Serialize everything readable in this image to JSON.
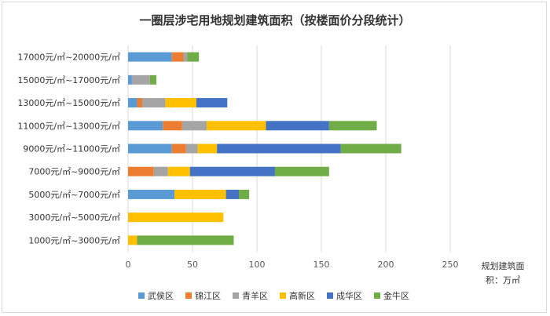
{
  "chart_data": {
    "type": "bar",
    "orientation": "horizontal",
    "stacked": true,
    "title": "一圈层涉宅用地规划建筑面积（按楼面价分段统计）",
    "xlabel_line1": "规划建筑面",
    "xlabel_line2": "积：万㎡",
    "xlim": [
      0,
      250
    ],
    "xticks": [
      0,
      50,
      100,
      150,
      200,
      250
    ],
    "grid": true,
    "legend_position": "bottom",
    "categories": [
      "17000元/㎡~20000元/㎡",
      "15000元/㎡~17000元/㎡",
      "13000元/㎡~15000元/㎡",
      "11000元/㎡~13000元/㎡",
      "9000元/㎡~11000元/㎡",
      "7000元/㎡~9000元/㎡",
      "5000元/㎡~7000元/㎡",
      "3000元/㎡~5000元/㎡",
      "1000元/㎡~3000元/㎡"
    ],
    "series": [
      {
        "name": "武侯区",
        "color": "#5b9bd5",
        "values": [
          34,
          3,
          7,
          27,
          34,
          0,
          36,
          0,
          0
        ]
      },
      {
        "name": "锦江区",
        "color": "#ed7d31",
        "values": [
          9,
          0,
          4,
          15,
          11,
          20,
          0,
          0,
          0
        ]
      },
      {
        "name": "青羊区",
        "color": "#a5a5a5",
        "values": [
          3,
          14,
          18,
          19,
          9,
          11,
          0,
          0,
          0
        ]
      },
      {
        "name": "高新区",
        "color": "#ffc000",
        "values": [
          0,
          0,
          24,
          46,
          15,
          17,
          40,
          74,
          7
        ]
      },
      {
        "name": "成华区",
        "color": "#4472c4",
        "values": [
          0,
          0,
          24,
          49,
          96,
          66,
          10,
          0,
          0
        ]
      },
      {
        "name": "金牛区",
        "color": "#70ad47",
        "values": [
          9,
          5,
          0,
          37,
          47,
          42,
          8,
          0,
          75
        ]
      }
    ]
  }
}
